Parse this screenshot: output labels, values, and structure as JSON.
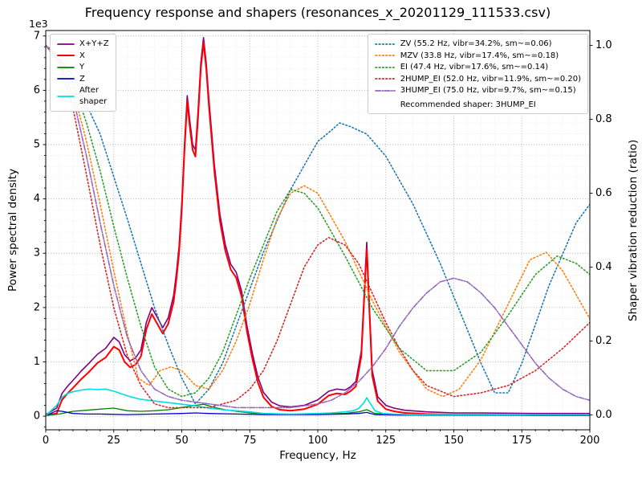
{
  "chart_data": {
    "type": "line",
    "title": "Frequency response and shapers (resonances_x_20201129_111533.csv)",
    "xlabel": "Frequency, Hz",
    "ylabel_left": "Power spectral density",
    "ylabel_right": "Shaper vibration reduction (ratio)",
    "offset_text": "1e3",
    "legend_note": "Recommended shaper: 3HUMP_EI",
    "xlim": [
      0,
      200
    ],
    "ylim_left": [
      -0.25,
      7.1
    ],
    "ylim_right": [
      -0.04,
      1.04
    ],
    "xticks": [
      0,
      25,
      50,
      75,
      100,
      125,
      150,
      175,
      200
    ],
    "yticks_left": [
      0,
      1,
      2,
      3,
      4,
      5,
      6,
      7
    ],
    "yticks_right": [
      0.0,
      0.2,
      0.4,
      0.6,
      0.8,
      1.0
    ],
    "grid": {
      "major": true,
      "minor": true,
      "x_minor_step": 5,
      "y_minor_step": 0.2
    },
    "legend_position": {
      "left_box": "upper left",
      "right_box": "upper right"
    },
    "series": [
      {
        "name": "sum",
        "label": "X+Y+Z",
        "legend": "left",
        "axis": "left",
        "color": "#800080",
        "style": "solid",
        "width": 1.6,
        "x": [
          0,
          4,
          6,
          8,
          10,
          13,
          16,
          19,
          22,
          25,
          27,
          29,
          31,
          33,
          35,
          37,
          39,
          41,
          43,
          45,
          47,
          48,
          49,
          50,
          51,
          52,
          53,
          54,
          55,
          56,
          57,
          58,
          59,
          60,
          62,
          64,
          66,
          68,
          70,
          72,
          74,
          76,
          78,
          80,
          83,
          86,
          90,
          95,
          100,
          104,
          107,
          110,
          112,
          114,
          116,
          117,
          118,
          119,
          120,
          122,
          125,
          128,
          132,
          140,
          150,
          160,
          180,
          200
        ],
        "y": [
          0.03,
          0.15,
          0.42,
          0.55,
          0.66,
          0.83,
          0.98,
          1.14,
          1.25,
          1.45,
          1.37,
          1.13,
          1.02,
          1.07,
          1.22,
          1.73,
          2.0,
          1.82,
          1.63,
          1.81,
          2.22,
          2.62,
          3.12,
          3.92,
          5.0,
          5.9,
          5.42,
          5.0,
          4.9,
          5.62,
          6.5,
          6.97,
          6.5,
          5.82,
          4.62,
          3.72,
          3.16,
          2.8,
          2.65,
          2.3,
          1.65,
          1.15,
          0.72,
          0.44,
          0.26,
          0.19,
          0.17,
          0.2,
          0.3,
          0.46,
          0.5,
          0.48,
          0.54,
          0.64,
          1.2,
          2.2,
          3.2,
          2.0,
          0.85,
          0.36,
          0.2,
          0.15,
          0.11,
          0.08,
          0.06,
          0.06,
          0.05,
          0.05
        ]
      },
      {
        "name": "x",
        "label": "X",
        "legend": "left",
        "axis": "left",
        "color": "#ff0000",
        "style": "solid",
        "width": 2,
        "x": [
          0,
          4,
          6,
          8,
          10,
          13,
          16,
          19,
          22,
          25,
          27,
          29,
          31,
          33,
          35,
          37,
          39,
          41,
          43,
          45,
          47,
          48,
          49,
          50,
          51,
          52,
          53,
          54,
          55,
          56,
          57,
          58,
          59,
          60,
          62,
          64,
          66,
          68,
          70,
          72,
          74,
          76,
          78,
          80,
          83,
          86,
          90,
          95,
          100,
          104,
          107,
          110,
          112,
          114,
          116,
          117,
          118,
          119,
          120,
          122,
          125,
          128,
          132,
          140,
          150,
          160,
          180,
          200
        ],
        "y": [
          0.02,
          0.05,
          0.3,
          0.42,
          0.52,
          0.68,
          0.82,
          0.98,
          1.08,
          1.28,
          1.22,
          1.0,
          0.9,
          0.95,
          1.1,
          1.6,
          1.88,
          1.7,
          1.52,
          1.7,
          2.1,
          2.5,
          3.0,
          3.8,
          4.9,
          5.8,
          5.3,
          4.9,
          4.78,
          5.5,
          6.4,
          6.88,
          6.4,
          5.7,
          4.5,
          3.6,
          3.05,
          2.7,
          2.55,
          2.2,
          1.55,
          1.05,
          0.62,
          0.35,
          0.18,
          0.12,
          0.1,
          0.13,
          0.22,
          0.38,
          0.42,
          0.4,
          0.46,
          0.55,
          1.1,
          2.1,
          3.08,
          1.9,
          0.75,
          0.28,
          0.13,
          0.09,
          0.06,
          0.04,
          0.03,
          0.03,
          0.02,
          0.02
        ]
      },
      {
        "name": "y",
        "label": "Y",
        "legend": "left",
        "axis": "left",
        "color": "#008000",
        "style": "solid",
        "width": 1.3,
        "x": [
          0,
          5,
          10,
          15,
          20,
          25,
          30,
          35,
          40,
          45,
          50,
          55,
          58,
          62,
          66,
          70,
          75,
          80,
          90,
          100,
          110,
          115,
          118,
          121,
          125,
          130,
          140,
          160,
          180,
          200
        ],
        "y": [
          0.01,
          0.04,
          0.09,
          0.11,
          0.13,
          0.15,
          0.1,
          0.09,
          0.1,
          0.12,
          0.16,
          0.2,
          0.22,
          0.16,
          0.12,
          0.09,
          0.06,
          0.04,
          0.03,
          0.04,
          0.05,
          0.08,
          0.12,
          0.05,
          0.04,
          0.03,
          0.02,
          0.02,
          0.02,
          0.02
        ]
      },
      {
        "name": "z",
        "label": "Z",
        "legend": "left",
        "axis": "left",
        "color": "#0000cd",
        "style": "solid",
        "width": 1.3,
        "x": [
          0,
          4,
          6,
          10,
          15,
          20,
          30,
          40,
          50,
          55,
          60,
          70,
          80,
          100,
          110,
          115,
          118,
          121,
          130,
          150,
          200
        ],
        "y": [
          0.01,
          0.1,
          0.09,
          0.05,
          0.04,
          0.04,
          0.03,
          0.04,
          0.05,
          0.06,
          0.05,
          0.04,
          0.03,
          0.03,
          0.04,
          0.05,
          0.07,
          0.03,
          0.02,
          0.02,
          0.02
        ]
      },
      {
        "name": "after_shaper",
        "label": "After\nshaper",
        "legend": "left",
        "axis": "left",
        "color": "#00dede",
        "style": "solid",
        "width": 1.6,
        "x": [
          0,
          4,
          6,
          8,
          10,
          13,
          16,
          19,
          22,
          25,
          28,
          31,
          35,
          40,
          45,
          50,
          55,
          60,
          65,
          70,
          75,
          80,
          90,
          100,
          105,
          110,
          113,
          115,
          117,
          118,
          119,
          121,
          124,
          128,
          135,
          150,
          175,
          200
        ],
        "y": [
          0.01,
          0.2,
          0.35,
          0.42,
          0.45,
          0.48,
          0.5,
          0.49,
          0.5,
          0.46,
          0.41,
          0.36,
          0.31,
          0.28,
          0.25,
          0.22,
          0.19,
          0.15,
          0.12,
          0.1,
          0.08,
          0.05,
          0.04,
          0.05,
          0.06,
          0.08,
          0.1,
          0.14,
          0.25,
          0.34,
          0.26,
          0.1,
          0.05,
          0.04,
          0.03,
          0.03,
          0.03,
          0.03
        ]
      },
      {
        "name": "zv",
        "label": "ZV (55.2 Hz, vibr=34.2%, sm~=0.06)",
        "legend": "right",
        "axis": "right",
        "color": "#1f77b4",
        "style": "dotted",
        "width": 1.6,
        "x": [
          0,
          10,
          20,
          30,
          40,
          45,
          50,
          55,
          60,
          65,
          70,
          80,
          90,
          100,
          105,
          108,
          112,
          118,
          125,
          135,
          145,
          155,
          160,
          165,
          170,
          175,
          185,
          195,
          200
        ],
        "y": [
          1.0,
          0.92,
          0.76,
          0.53,
          0.29,
          0.19,
          0.1,
          0.03,
          0.07,
          0.14,
          0.24,
          0.44,
          0.61,
          0.74,
          0.77,
          0.79,
          0.78,
          0.76,
          0.7,
          0.57,
          0.41,
          0.23,
          0.14,
          0.06,
          0.06,
          0.14,
          0.35,
          0.52,
          0.57
        ]
      },
      {
        "name": "mzv",
        "label": "MZV (33.8 Hz, vibr=17.4%, sm~=0.18)",
        "legend": "right",
        "axis": "right",
        "color": "#ff7f0e",
        "style": "dotted",
        "width": 1.6,
        "x": [
          0,
          5,
          10,
          15,
          20,
          25,
          30,
          34,
          38,
          42,
          46,
          50,
          55,
          60,
          65,
          70,
          75,
          80,
          85,
          90,
          95,
          100,
          110,
          120,
          130,
          140,
          146,
          152,
          160,
          170,
          178,
          184,
          190,
          200
        ],
        "y": [
          1.0,
          0.97,
          0.88,
          0.74,
          0.57,
          0.39,
          0.22,
          0.1,
          0.08,
          0.12,
          0.13,
          0.12,
          0.08,
          0.07,
          0.12,
          0.2,
          0.3,
          0.42,
          0.53,
          0.6,
          0.62,
          0.6,
          0.47,
          0.31,
          0.17,
          0.07,
          0.05,
          0.07,
          0.15,
          0.3,
          0.42,
          0.44,
          0.39,
          0.26
        ]
      },
      {
        "name": "ei",
        "label": "EI (47.4 Hz, vibr=17.6%, sm~=0.14)",
        "legend": "right",
        "axis": "right",
        "color": "#2ca02c",
        "style": "dotted",
        "width": 1.6,
        "x": [
          0,
          5,
          10,
          15,
          20,
          25,
          30,
          35,
          40,
          45,
          50,
          55,
          60,
          65,
          70,
          75,
          80,
          85,
          90,
          95,
          100,
          110,
          120,
          130,
          140,
          150,
          160,
          170,
          180,
          188,
          195,
          200
        ],
        "y": [
          1.0,
          0.97,
          0.9,
          0.79,
          0.66,
          0.51,
          0.37,
          0.24,
          0.13,
          0.07,
          0.05,
          0.06,
          0.1,
          0.17,
          0.27,
          0.37,
          0.46,
          0.55,
          0.61,
          0.6,
          0.56,
          0.43,
          0.29,
          0.18,
          0.12,
          0.12,
          0.17,
          0.27,
          0.38,
          0.43,
          0.41,
          0.38
        ]
      },
      {
        "name": "hump2_ei",
        "label": "2HUMP_EI (52.0 Hz, vibr=11.9%, sm~=0.20)",
        "legend": "right",
        "axis": "right",
        "color": "#d62728",
        "style": "dotted",
        "width": 1.6,
        "x": [
          0,
          5,
          10,
          15,
          20,
          25,
          30,
          35,
          40,
          45,
          50,
          55,
          60,
          65,
          70,
          75,
          80,
          85,
          90,
          95,
          100,
          104,
          110,
          115,
          120,
          125,
          130,
          135,
          140,
          150,
          160,
          170,
          180,
          190,
          200
        ],
        "y": [
          1.0,
          0.95,
          0.83,
          0.65,
          0.46,
          0.29,
          0.16,
          0.08,
          0.03,
          0.02,
          0.02,
          0.02,
          0.02,
          0.03,
          0.04,
          0.07,
          0.12,
          0.2,
          0.3,
          0.4,
          0.46,
          0.48,
          0.46,
          0.41,
          0.33,
          0.25,
          0.18,
          0.12,
          0.08,
          0.05,
          0.06,
          0.08,
          0.12,
          0.18,
          0.25
        ]
      },
      {
        "name": "hump3_ei",
        "label": "3HUMP_EI (75.0 Hz, vibr=9.7%, sm~=0.15)",
        "legend": "right",
        "axis": "right",
        "color": "#9467bd",
        "style": "dashdot",
        "width": 1.6,
        "x": [
          0,
          5,
          10,
          15,
          20,
          25,
          30,
          35,
          40,
          45,
          50,
          60,
          70,
          80,
          90,
          100,
          105,
          110,
          115,
          120,
          125,
          130,
          135,
          140,
          145,
          150,
          155,
          160,
          165,
          170,
          175,
          180,
          185,
          190,
          195,
          200
        ],
        "y": [
          1.0,
          0.96,
          0.86,
          0.7,
          0.52,
          0.35,
          0.21,
          0.12,
          0.07,
          0.05,
          0.04,
          0.03,
          0.02,
          0.02,
          0.02,
          0.03,
          0.04,
          0.06,
          0.09,
          0.13,
          0.18,
          0.24,
          0.29,
          0.33,
          0.36,
          0.37,
          0.36,
          0.33,
          0.29,
          0.24,
          0.19,
          0.14,
          0.1,
          0.07,
          0.05,
          0.04
        ]
      }
    ]
  }
}
